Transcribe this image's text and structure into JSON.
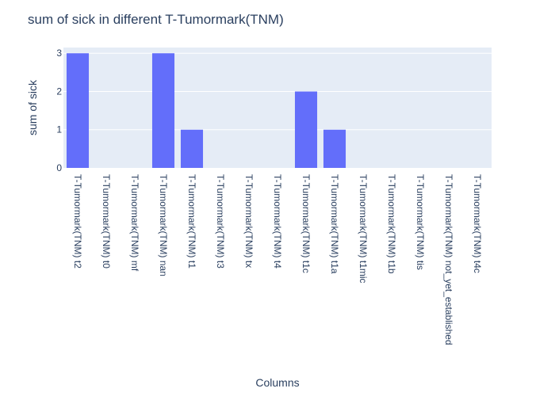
{
  "chart_data": {
    "type": "bar",
    "title": "sum of sick in different T-Tumormark(TNM)",
    "xlabel": "Columns",
    "ylabel": "sum of sick",
    "categories": [
      "T-Tumormark(TNM) t2",
      "T-Tumormark(TNM) t0",
      "T-Tumormark(TNM) mf",
      "T-Tumormark(TNM) nan",
      "T-Tumormark(TNM) t1",
      "T-Tumormark(TNM) t3",
      "T-Tumormark(TNM) tx",
      "T-Tumormark(TNM) t4",
      "T-Tumormark(TNM) t1c",
      "T-Tumormark(TNM) t1a",
      "T-Tumormark(TNM) t1mic",
      "T-Tumormark(TNM) t1b",
      "T-Tumormark(TNM) tis",
      "T-Tumormark(TNM) not_yet_established",
      "T-Tumormark(TNM) t4c"
    ],
    "values": [
      3,
      0,
      0,
      3,
      1,
      0,
      0,
      0,
      2,
      1,
      0,
      0,
      0,
      0,
      0
    ],
    "ylim": [
      0,
      3.15
    ],
    "yticks": [
      0,
      1,
      2,
      3
    ],
    "grid": true,
    "colors": {
      "bar": "#636efa",
      "plot_bg": "#e5ecf6",
      "grid": "#ffffff",
      "text": "#2a3f5f",
      "title": "#2a3f5f"
    }
  }
}
